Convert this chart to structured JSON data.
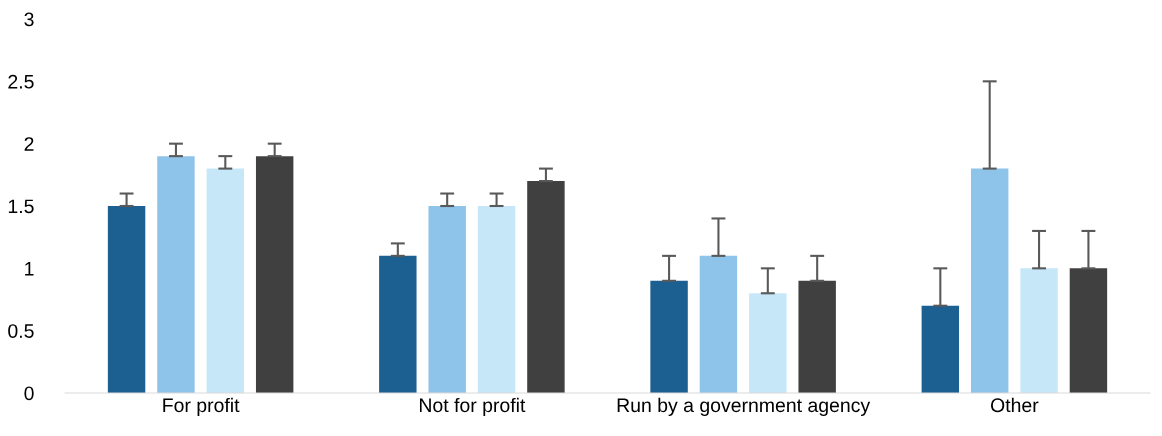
{
  "chart_data": {
    "type": "bar",
    "categories": [
      "For profit",
      "Not for profit",
      "Run by a government agency",
      "Other"
    ],
    "series": [
      {
        "color": "#1c5f91",
        "values": [
          1.5,
          1.1,
          0.9,
          0.7
        ],
        "errors": [
          [
            1.5,
            1.6
          ],
          [
            1.1,
            1.2
          ],
          [
            0.9,
            1.1
          ],
          [
            0.7,
            1.0
          ]
        ]
      },
      {
        "color": "#8ec3ea",
        "values": [
          1.9,
          1.5,
          1.1,
          1.8
        ],
        "errors": [
          [
            1.9,
            2.0
          ],
          [
            1.5,
            1.6
          ],
          [
            1.1,
            1.4
          ],
          [
            1.8,
            2.5
          ]
        ]
      },
      {
        "color": "#c6e7f8",
        "values": [
          1.8,
          1.5,
          0.8,
          1.0
        ],
        "errors": [
          [
            1.8,
            1.9
          ],
          [
            1.5,
            1.6
          ],
          [
            0.8,
            1.0
          ],
          [
            1.0,
            1.3
          ]
        ]
      },
      {
        "color": "#404040",
        "values": [
          1.9,
          1.7,
          0.9,
          1.0
        ],
        "errors": [
          [
            1.9,
            2.0
          ],
          [
            1.7,
            1.8
          ],
          [
            0.9,
            1.1
          ],
          [
            1.0,
            1.3
          ]
        ]
      }
    ],
    "ylim": [
      0,
      3
    ],
    "yticks": [
      0,
      0.5,
      1,
      1.5,
      2,
      2.5,
      3
    ],
    "grid": false,
    "legend": false
  }
}
